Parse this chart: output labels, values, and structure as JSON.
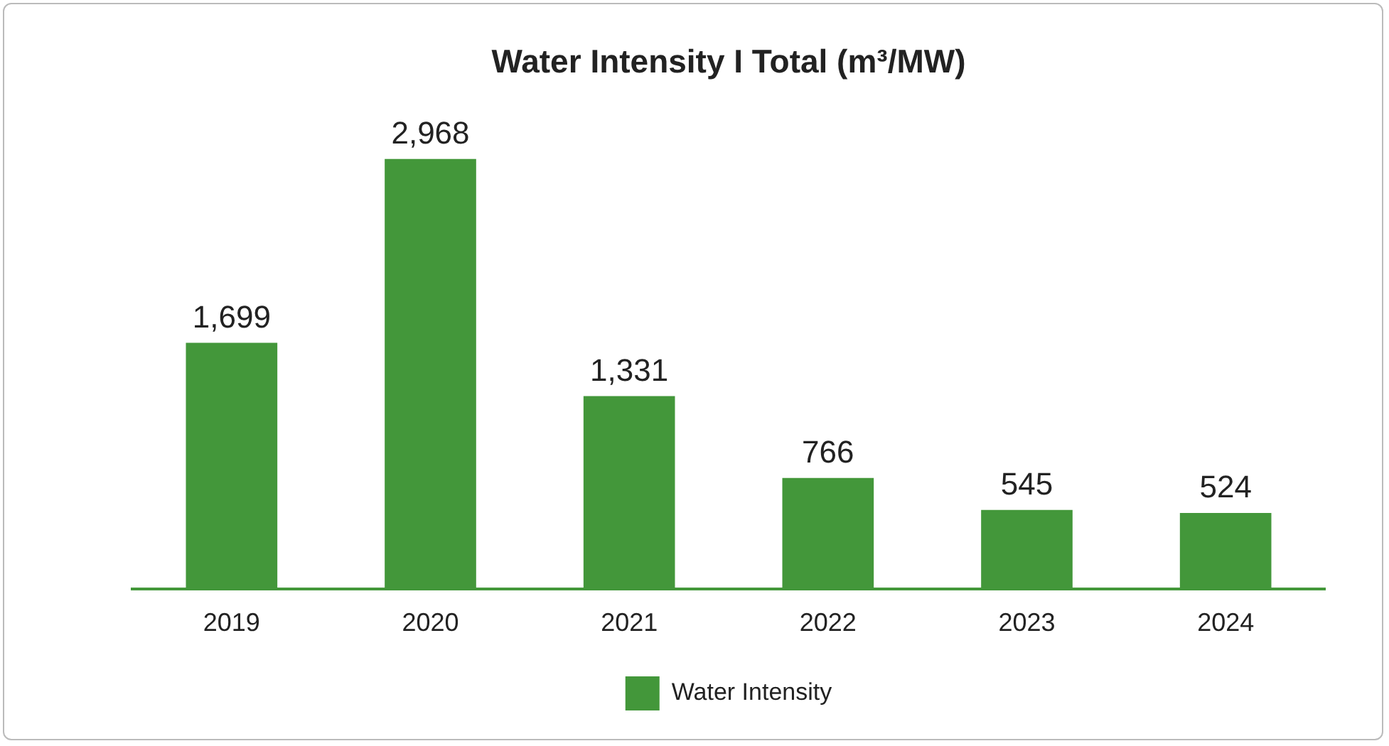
{
  "chart_data": {
    "type": "bar",
    "title": "Water Intensity I Total (m³/MW)",
    "categories": [
      "2019",
      "2020",
      "2021",
      "2022",
      "2023",
      "2024"
    ],
    "series": [
      {
        "name": "Water Intensity",
        "color": "#43973a",
        "values": [
          1699,
          2968,
          1331,
          766,
          545,
          524
        ],
        "value_labels": [
          "1,699",
          "2,968",
          "1,331",
          "766",
          "545",
          "524"
        ]
      }
    ],
    "tick_labels": "x",
    "grid": false,
    "legend": "bottom"
  }
}
